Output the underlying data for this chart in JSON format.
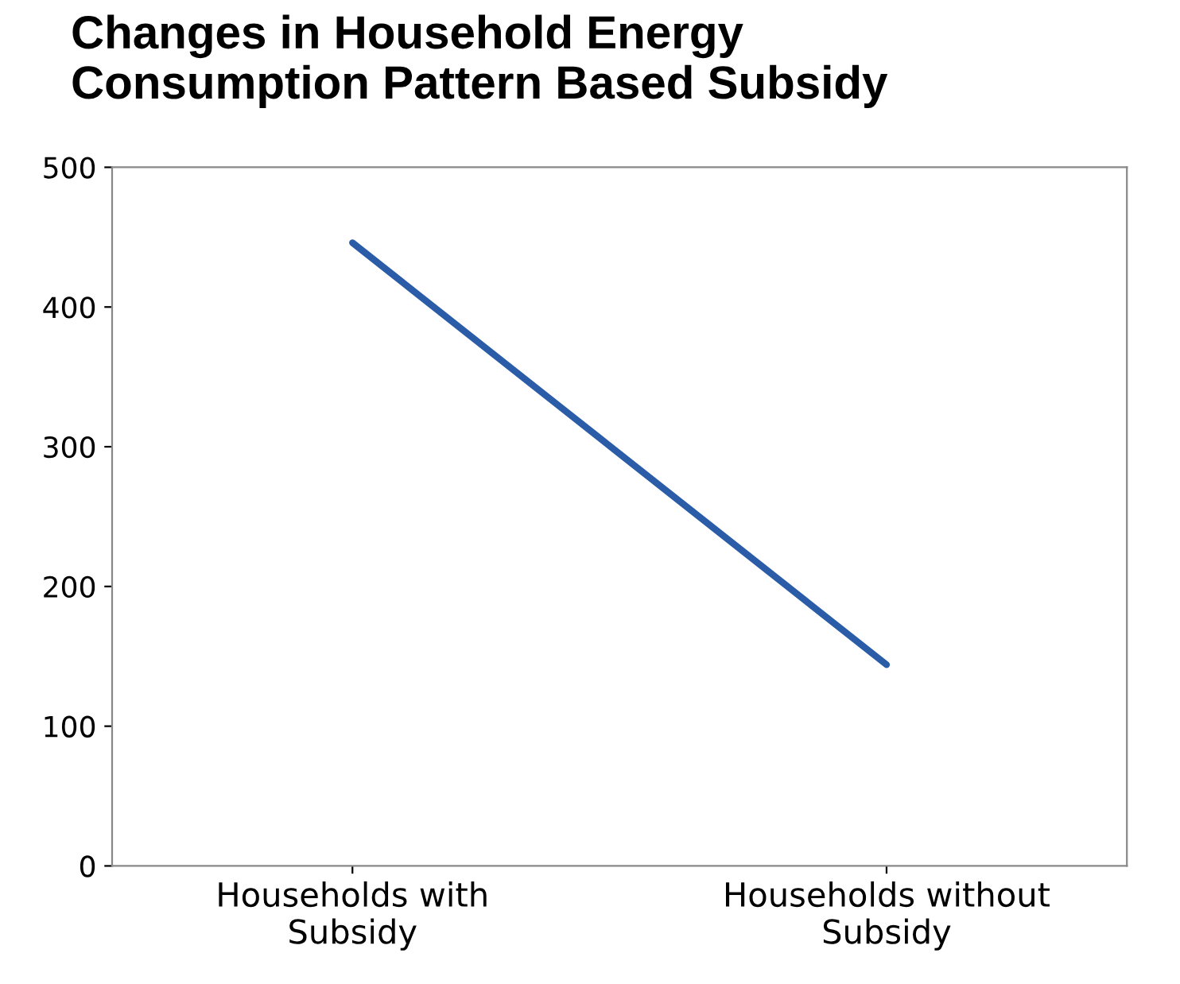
{
  "chart_data": {
    "type": "line",
    "title": "Changes in Household Energy\nConsumption Pattern Based Subsidy",
    "categories": [
      "Households with\nSubsidy",
      "Households without\nSubsidy"
    ],
    "series": [
      {
        "color": "#2b5ca8",
        "values": [
          446,
          144
        ]
      }
    ],
    "ylim": [
      0,
      500
    ],
    "yticks": [
      0,
      100,
      200,
      300,
      400,
      500
    ],
    "grid": false,
    "legend": false,
    "marker": "none",
    "line_style": "solid"
  }
}
